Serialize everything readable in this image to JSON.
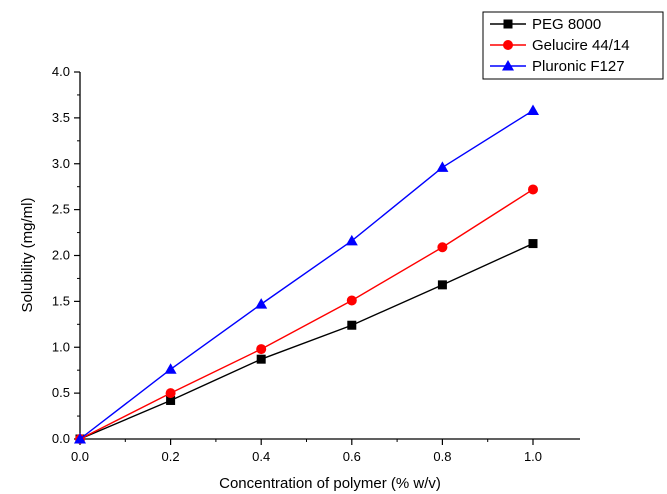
{
  "chart_data": {
    "type": "line",
    "xlabel": "Concentration of polymer (% w/v)",
    "ylabel": "Solubility (mg/ml)",
    "xlim": [
      0.0,
      1.0
    ],
    "ylim": [
      0.0,
      4.0
    ],
    "x": [
      0.0,
      0.2,
      0.4,
      0.6,
      0.8,
      1.0
    ],
    "xticks": [
      "0.0",
      "0.2",
      "0.4",
      "0.6",
      "0.8",
      "1.0"
    ],
    "yticks": [
      "0.0",
      "0.5",
      "1.0",
      "1.5",
      "2.0",
      "2.5",
      "3.0",
      "3.5",
      "4.0"
    ],
    "grid": false,
    "legend_position": "top-right",
    "series": [
      {
        "name": "PEG 8000",
        "color": "#000000",
        "marker": "square",
        "values": [
          0.0,
          0.42,
          0.87,
          1.24,
          1.68,
          2.13
        ]
      },
      {
        "name": "Gelucire 44/14",
        "color": "#ff0000",
        "marker": "circle",
        "values": [
          0.0,
          0.5,
          0.98,
          1.51,
          2.09,
          2.72
        ]
      },
      {
        "name": "Pluronic F127",
        "color": "#0000ff",
        "marker": "triangle",
        "values": [
          0.0,
          0.76,
          1.47,
          2.16,
          2.96,
          3.58
        ]
      }
    ]
  }
}
